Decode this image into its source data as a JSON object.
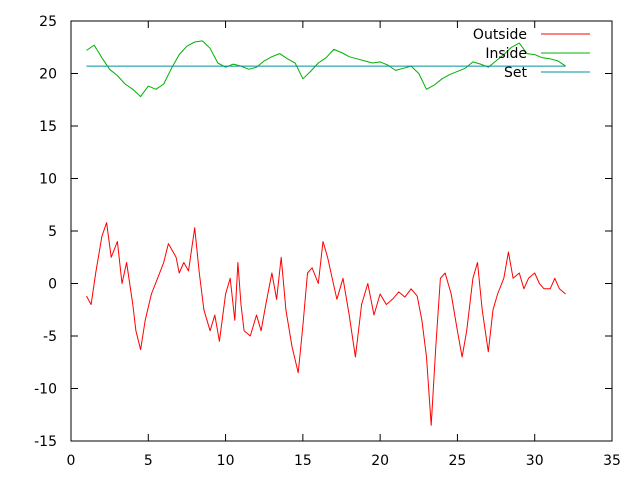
{
  "chart_data": {
    "type": "line",
    "xlim": [
      0,
      35
    ],
    "ylim": [
      -15,
      25
    ],
    "xticks": [
      0,
      5,
      10,
      15,
      20,
      25,
      30,
      35
    ],
    "yticks": [
      -15,
      -10,
      -5,
      0,
      5,
      10,
      15,
      20,
      25
    ],
    "grid": false,
    "legend_position": "top-right",
    "series": [
      {
        "name": "Outside",
        "color": "#ff0000",
        "x": [
          1.0,
          1.3,
          1.6,
          2.0,
          2.3,
          2.6,
          3.0,
          3.3,
          3.6,
          4.0,
          4.2,
          4.5,
          4.8,
          5.2,
          5.6,
          6.0,
          6.3,
          6.8,
          7.0,
          7.3,
          7.6,
          8.0,
          8.3,
          8.6,
          9.0,
          9.3,
          9.6,
          10.0,
          10.3,
          10.6,
          10.8,
          11.0,
          11.2,
          11.6,
          12.0,
          12.3,
          12.6,
          13.0,
          13.3,
          13.6,
          13.9,
          14.3,
          14.7,
          15.0,
          15.3,
          15.6,
          16.0,
          16.3,
          16.6,
          16.9,
          17.2,
          17.6,
          18.0,
          18.4,
          18.8,
          19.2,
          19.6,
          20.0,
          20.4,
          20.8,
          21.2,
          21.6,
          22.0,
          22.4,
          22.7,
          23.0,
          23.3,
          23.6,
          23.9,
          24.2,
          24.6,
          25.0,
          25.3,
          25.6,
          26.0,
          26.3,
          26.6,
          27.0,
          27.3,
          27.6,
          28.0,
          28.3,
          28.6,
          29.0,
          29.3,
          29.6,
          30.0,
          30.3,
          30.6,
          31.0,
          31.3,
          31.6,
          32.0
        ],
        "values": [
          -1.2,
          -2.0,
          1.0,
          4.5,
          5.8,
          2.5,
          4.0,
          0.0,
          2.0,
          -2.0,
          -4.5,
          -6.3,
          -3.5,
          -1.0,
          0.5,
          2.0,
          3.8,
          2.5,
          1.0,
          2.0,
          1.2,
          5.3,
          1.0,
          -2.5,
          -4.5,
          -3.0,
          -5.5,
          -1.0,
          0.5,
          -3.5,
          2.0,
          -2.0,
          -4.5,
          -5.0,
          -3.0,
          -4.5,
          -2.0,
          1.0,
          -1.5,
          2.5,
          -2.5,
          -6.0,
          -8.5,
          -4.0,
          1.0,
          1.5,
          0.0,
          4.0,
          2.5,
          0.5,
          -1.5,
          0.5,
          -3.0,
          -7.0,
          -2.0,
          0.0,
          -3.0,
          -1.0,
          -2.0,
          -1.5,
          -0.8,
          -1.3,
          -0.5,
          -1.2,
          -3.5,
          -7.0,
          -13.5,
          -6.0,
          0.5,
          1.0,
          -1.0,
          -4.5,
          -7.0,
          -4.5,
          0.5,
          2.0,
          -2.5,
          -6.5,
          -2.5,
          -1.0,
          0.5,
          3.0,
          0.5,
          1.0,
          -0.5,
          0.5,
          1.0,
          0.0,
          -0.5,
          -0.5,
          0.5,
          -0.5,
          -1.0
        ]
      },
      {
        "name": "Inside",
        "color": "#00b000",
        "x": [
          1.0,
          1.5,
          2.0,
          2.5,
          3.0,
          3.5,
          4.0,
          4.5,
          5.0,
          5.5,
          6.0,
          6.5,
          7.0,
          7.5,
          8.0,
          8.5,
          9.0,
          9.5,
          10.0,
          10.5,
          11.0,
          11.5,
          12.0,
          12.5,
          13.0,
          13.5,
          14.0,
          14.5,
          15.0,
          15.5,
          16.0,
          16.5,
          17.0,
          17.5,
          18.0,
          18.5,
          19.0,
          19.5,
          20.0,
          20.5,
          21.0,
          21.5,
          22.0,
          22.5,
          23.0,
          23.5,
          24.0,
          24.5,
          25.0,
          25.5,
          26.0,
          26.5,
          27.0,
          27.5,
          28.0,
          28.5,
          29.0,
          29.5,
          30.0,
          30.5,
          31.0,
          31.5,
          32.0
        ],
        "values": [
          22.2,
          22.7,
          21.5,
          20.4,
          19.8,
          19.0,
          18.5,
          17.8,
          18.8,
          18.5,
          19.0,
          20.5,
          21.8,
          22.6,
          23.0,
          23.1,
          22.4,
          21.0,
          20.6,
          20.9,
          20.7,
          20.4,
          20.6,
          21.2,
          21.6,
          21.9,
          21.4,
          21.0,
          19.5,
          20.2,
          21.0,
          21.5,
          22.3,
          22.0,
          21.6,
          21.4,
          21.2,
          21.0,
          21.1,
          20.8,
          20.3,
          20.5,
          20.7,
          20.0,
          18.5,
          18.9,
          19.5,
          19.9,
          20.2,
          20.5,
          21.1,
          20.9,
          20.6,
          21.2,
          21.8,
          22.5,
          22.9,
          21.9,
          21.8,
          21.5,
          21.4,
          21.2,
          20.7
        ]
      },
      {
        "name": "Set",
        "color": "#0090a0",
        "x": [
          1.0,
          32.0
        ],
        "values": [
          20.7,
          20.7
        ]
      }
    ]
  }
}
